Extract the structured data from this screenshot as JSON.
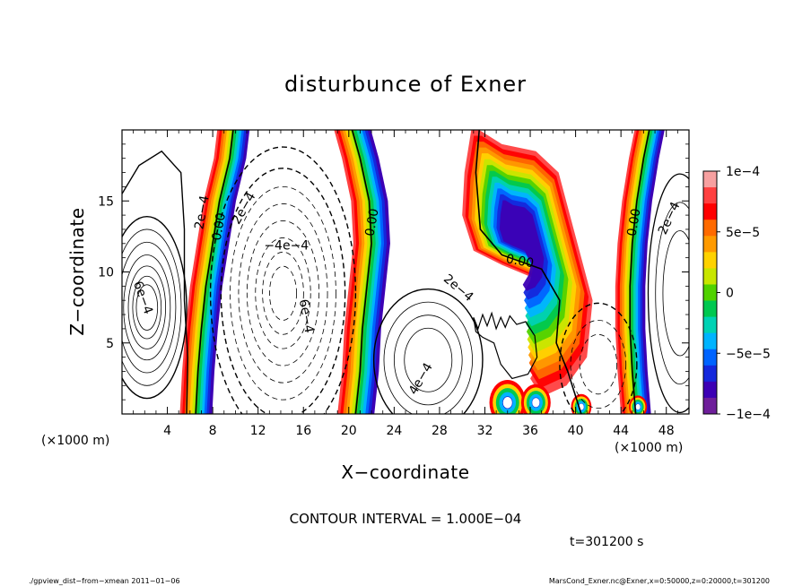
{
  "chart_data": {
    "type": "contour",
    "title": "disturbunce of Exner",
    "xlabel": "X−coordinate",
    "ylabel": "Z−coordinate",
    "x_unit": "(×1000 m)",
    "z_unit": "(×1000 m)",
    "xlim": [
      0,
      50
    ],
    "ylim": [
      0,
      20
    ],
    "x_ticks": [
      4,
      8,
      12,
      16,
      20,
      24,
      28,
      32,
      36,
      40,
      44,
      48
    ],
    "y_ticks": [
      5,
      10,
      15
    ],
    "contour_interval_text": "CONTOUR INTERVAL = 1.000E−04",
    "time_text": "t=301200 s",
    "colorbar": {
      "min": -0.0001,
      "max": 0.0001,
      "labels": [
        "1e−4",
        "5e−5",
        "0",
        "−5e−5",
        "−1e−4"
      ],
      "colors": [
        "#f7a0a0",
        "#ff4040",
        "#ff0000",
        "#ff6a00",
        "#ff9a00",
        "#ffd200",
        "#c8e600",
        "#50d200",
        "#00c850",
        "#00d2b4",
        "#00b4ff",
        "#0064ff",
        "#1428dc",
        "#3c00b4",
        "#6e1e9a"
      ]
    },
    "contour_labels": [
      {
        "text": "0.00",
        "x": 8.5,
        "z": 13.2,
        "angle": -80
      },
      {
        "text": "2e−4",
        "x": 7.0,
        "z": 14.2,
        "angle": -80
      },
      {
        "text": "2e−4",
        "x": 10.7,
        "z": 14.5,
        "angle": -60
      },
      {
        "text": "−4e−4",
        "x": 14.5,
        "z": 11.9,
        "angle": 0
      },
      {
        "text": "6e−4",
        "x": 1.9,
        "z": 8.2,
        "angle": 70
      },
      {
        "text": "6e−4",
        "x": 16.3,
        "z": 6.9,
        "angle": 80
      },
      {
        "text": "0.00",
        "x": 22.0,
        "z": 13.5,
        "angle": -80
      },
      {
        "text": "2e−4",
        "x": 29.7,
        "z": 8.9,
        "angle": 40
      },
      {
        "text": "4e−4",
        "x": 26.3,
        "z": 2.5,
        "angle": -60
      },
      {
        "text": "0.00",
        "x": 35.1,
        "z": 10.8,
        "angle": 10
      },
      {
        "text": "0.00",
        "x": 45.1,
        "z": 13.5,
        "angle": -80
      },
      {
        "text": "2e−4",
        "x": 48.2,
        "z": 13.8,
        "angle": -65
      }
    ]
  },
  "footer": {
    "left": "./gpview_dist−from−xmean  2011−01−06",
    "right": "MarsCond_Exner.nc@Exner,x=0:50000,z=0:20000,t=301200"
  }
}
